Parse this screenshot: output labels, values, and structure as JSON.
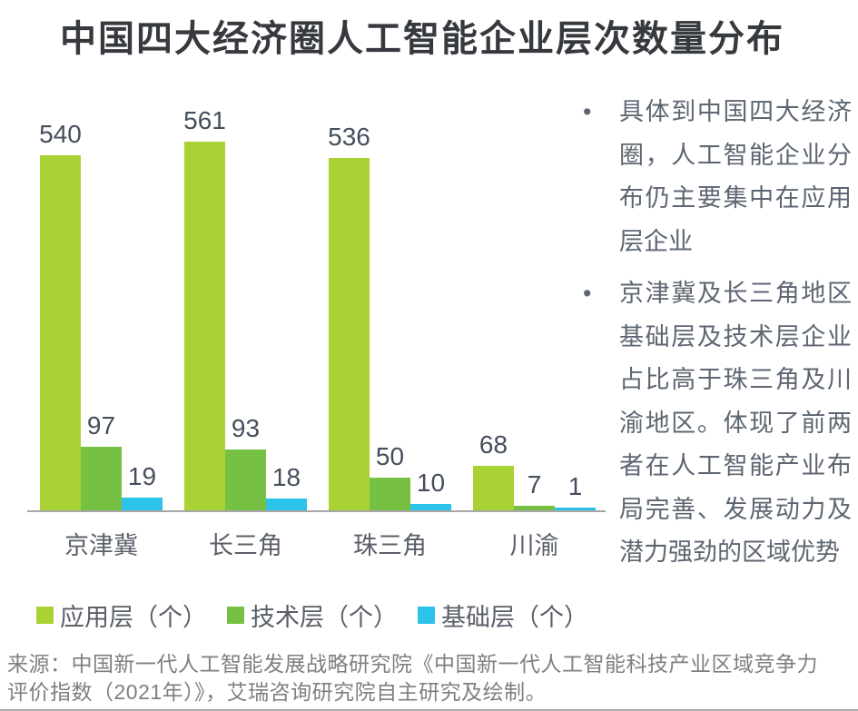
{
  "title": "中国四大经济圈人工智能企业层次数量分布",
  "chart_data": {
    "type": "bar",
    "categories": [
      "京津冀",
      "长三角",
      "珠三角",
      "川渝"
    ],
    "series": [
      {
        "name": "应用层（个）",
        "color": "#a9d234",
        "values": [
          540,
          561,
          536,
          68
        ]
      },
      {
        "name": "技术层（个）",
        "color": "#76c043",
        "values": [
          97,
          93,
          50,
          7
        ]
      },
      {
        "name": "基础层（个）",
        "color": "#2bc3e8",
        "values": [
          19,
          18,
          10,
          1
        ]
      }
    ],
    "title": "中国四大经济圈人工智能企业层次数量分布",
    "xlabel": "",
    "ylabel": "",
    "ylim": [
      0,
      600
    ],
    "grid": false,
    "data_labels": true,
    "legend_position": "bottom"
  },
  "insights": {
    "bullets": [
      "具体到中国四大经济圈，人工智能企业分布仍主要集中在应用层企业",
      "京津冀及长三角地区基础层及技术层企业占比高于珠三角及川渝地区。体现了前两者在人工智能产业布局完善、发展动力及潜力强劲的区域优势"
    ],
    "bullet_glyph": "•"
  },
  "source_text": "来源：中国新一代人工智能发展战略研究院《中国新一代人工智能科技产业区域竞争力评价指数（2021年）》，艾瑞咨询研究院自主研究及绘制。",
  "colors": {
    "application_layer": "#a9d234",
    "technology_layer": "#76c043",
    "foundation_layer": "#2bc3e8",
    "axis": "#a6a6a6",
    "title_text": "#36393e",
    "value_label": "#454e5e",
    "category_label": "#5a5f68",
    "insight_text": "#5d6672",
    "source_text": "#7f7f7f"
  }
}
